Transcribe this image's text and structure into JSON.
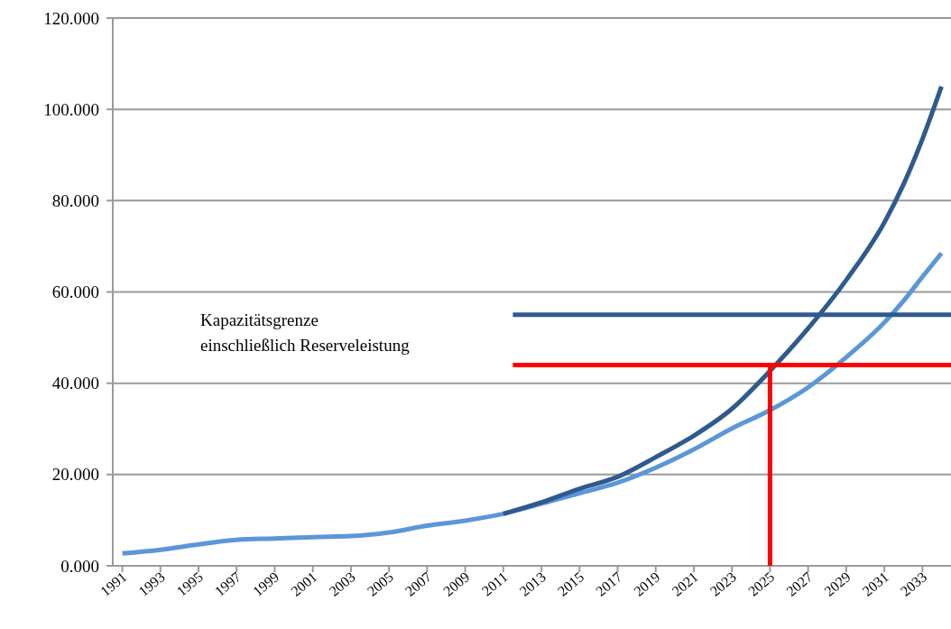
{
  "chart_data": {
    "type": "line",
    "xlim": [
      1990.5,
      2034.5
    ],
    "xticks": [
      1991,
      1993,
      1995,
      1997,
      1999,
      2001,
      2003,
      2005,
      2007,
      2009,
      2011,
      2013,
      2015,
      2017,
      2019,
      2021,
      2023,
      2025,
      2027,
      2029,
      2031,
      2033
    ],
    "ylim": [
      0,
      120
    ],
    "yticks": [
      {
        "value": 0,
        "label": "0.000"
      },
      {
        "value": 20,
        "label": "20.000"
      },
      {
        "value": 40,
        "label": "40.000"
      },
      {
        "value": 60,
        "label": "60.000"
      },
      {
        "value": 80,
        "label": "80.000"
      },
      {
        "value": 100,
        "label": "100.000"
      },
      {
        "value": 120,
        "label": "120.000"
      }
    ],
    "grid": "y",
    "marker": "none",
    "line_style": "solid",
    "series": [
      {
        "color": "#5b96d8",
        "x": [
          1991,
          1993,
          1995,
          1997,
          1999,
          2001,
          2003,
          2005,
          2007,
          2009,
          2011,
          2013,
          2015,
          2017,
          2019,
          2021,
          2023,
          2025,
          2027,
          2029,
          2031,
          2032,
          2033,
          2034
        ],
        "values": [
          2.7,
          3.5,
          4.7,
          5.7,
          6.0,
          6.3,
          6.5,
          7.3,
          8.8,
          9.9,
          11.4,
          13.6,
          15.9,
          18.2,
          21.5,
          25.5,
          30.1,
          34.1,
          39.1,
          45.7,
          53.3,
          58.0,
          63.3,
          68.5
        ]
      },
      {
        "color": "#2e5a8e",
        "x": [
          2011,
          2013,
          2015,
          2017,
          2019,
          2021,
          2023,
          2025,
          2027,
          2029,
          2031,
          2032,
          2033,
          2034
        ],
        "values": [
          11.4,
          13.9,
          16.9,
          19.5,
          23.8,
          28.5,
          34.4,
          42.7,
          52.0,
          62.6,
          75.2,
          83.5,
          93.5,
          105
        ]
      },
      {
        "color": "#2e5a8e",
        "x": [
          2011.5,
          2034.5
        ],
        "values": [
          55,
          55
        ]
      },
      {
        "color": "#ff0000",
        "x": [
          2011.5,
          2034.5
        ],
        "values": [
          44,
          44
        ]
      },
      {
        "color": "#ff0000",
        "x": [
          2025,
          2025
        ],
        "values": [
          0,
          44
        ]
      }
    ],
    "annotations": [
      "Kapazitätsgrenze\neinschließlich Reserveleistung"
    ]
  }
}
